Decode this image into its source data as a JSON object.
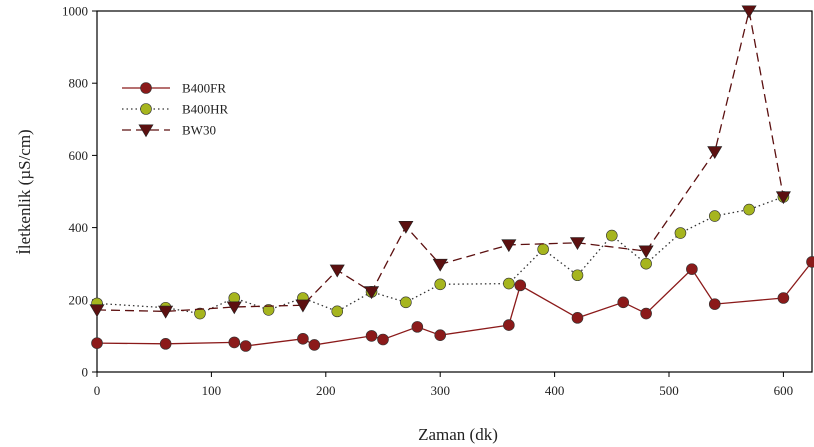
{
  "chart_data": {
    "type": "line",
    "title": "",
    "xlabel": "Zaman (dk)",
    "ylabel": "İletkenlik (µS/cm)",
    "xlim": [
      0,
      625
    ],
    "ylim": [
      0,
      1000
    ],
    "xticks": [
      0,
      100,
      200,
      300,
      400,
      500,
      600
    ],
    "yticks": [
      0,
      200,
      400,
      600,
      800,
      1000
    ],
    "grid": false,
    "legend_position": "upper-left",
    "series": [
      {
        "name": "B400FR",
        "color": "#8b1a1a",
        "marker": "circle",
        "dash": "solid",
        "points": [
          [
            0,
            80
          ],
          [
            60,
            78
          ],
          [
            120,
            82
          ],
          [
            130,
            72
          ],
          [
            180,
            92
          ],
          [
            190,
            75
          ],
          [
            240,
            100
          ],
          [
            250,
            90
          ],
          [
            280,
            125
          ],
          [
            300,
            102
          ],
          [
            360,
            130
          ],
          [
            370,
            240
          ],
          [
            420,
            150
          ],
          [
            460,
            193
          ],
          [
            480,
            162
          ],
          [
            520,
            285
          ],
          [
            540,
            188
          ],
          [
            600,
            205
          ],
          [
            625,
            305
          ]
        ]
      },
      {
        "name": "B400HR",
        "color": "#a6b51e",
        "marker": "circle",
        "dash": "dotted",
        "points": [
          [
            0,
            190
          ],
          [
            60,
            178
          ],
          [
            90,
            162
          ],
          [
            120,
            205
          ],
          [
            150,
            172
          ],
          [
            180,
            205
          ],
          [
            210,
            168
          ],
          [
            240,
            222
          ],
          [
            270,
            193
          ],
          [
            300,
            243
          ],
          [
            360,
            245
          ],
          [
            390,
            340
          ],
          [
            420,
            268
          ],
          [
            450,
            378
          ],
          [
            480,
            300
          ],
          [
            510,
            385
          ],
          [
            540,
            432
          ],
          [
            570,
            450
          ],
          [
            600,
            485
          ]
        ]
      },
      {
        "name": "BW30",
        "color": "#5c1010",
        "marker": "triangle-down",
        "dash": "dashed",
        "points": [
          [
            0,
            172
          ],
          [
            60,
            168
          ],
          [
            120,
            180
          ],
          [
            180,
            185
          ],
          [
            210,
            282
          ],
          [
            240,
            222
          ],
          [
            270,
            403
          ],
          [
            300,
            298
          ],
          [
            360,
            352
          ],
          [
            420,
            358
          ],
          [
            480,
            335
          ],
          [
            540,
            610
          ],
          [
            570,
            1000
          ],
          [
            600,
            485
          ]
        ]
      }
    ]
  }
}
